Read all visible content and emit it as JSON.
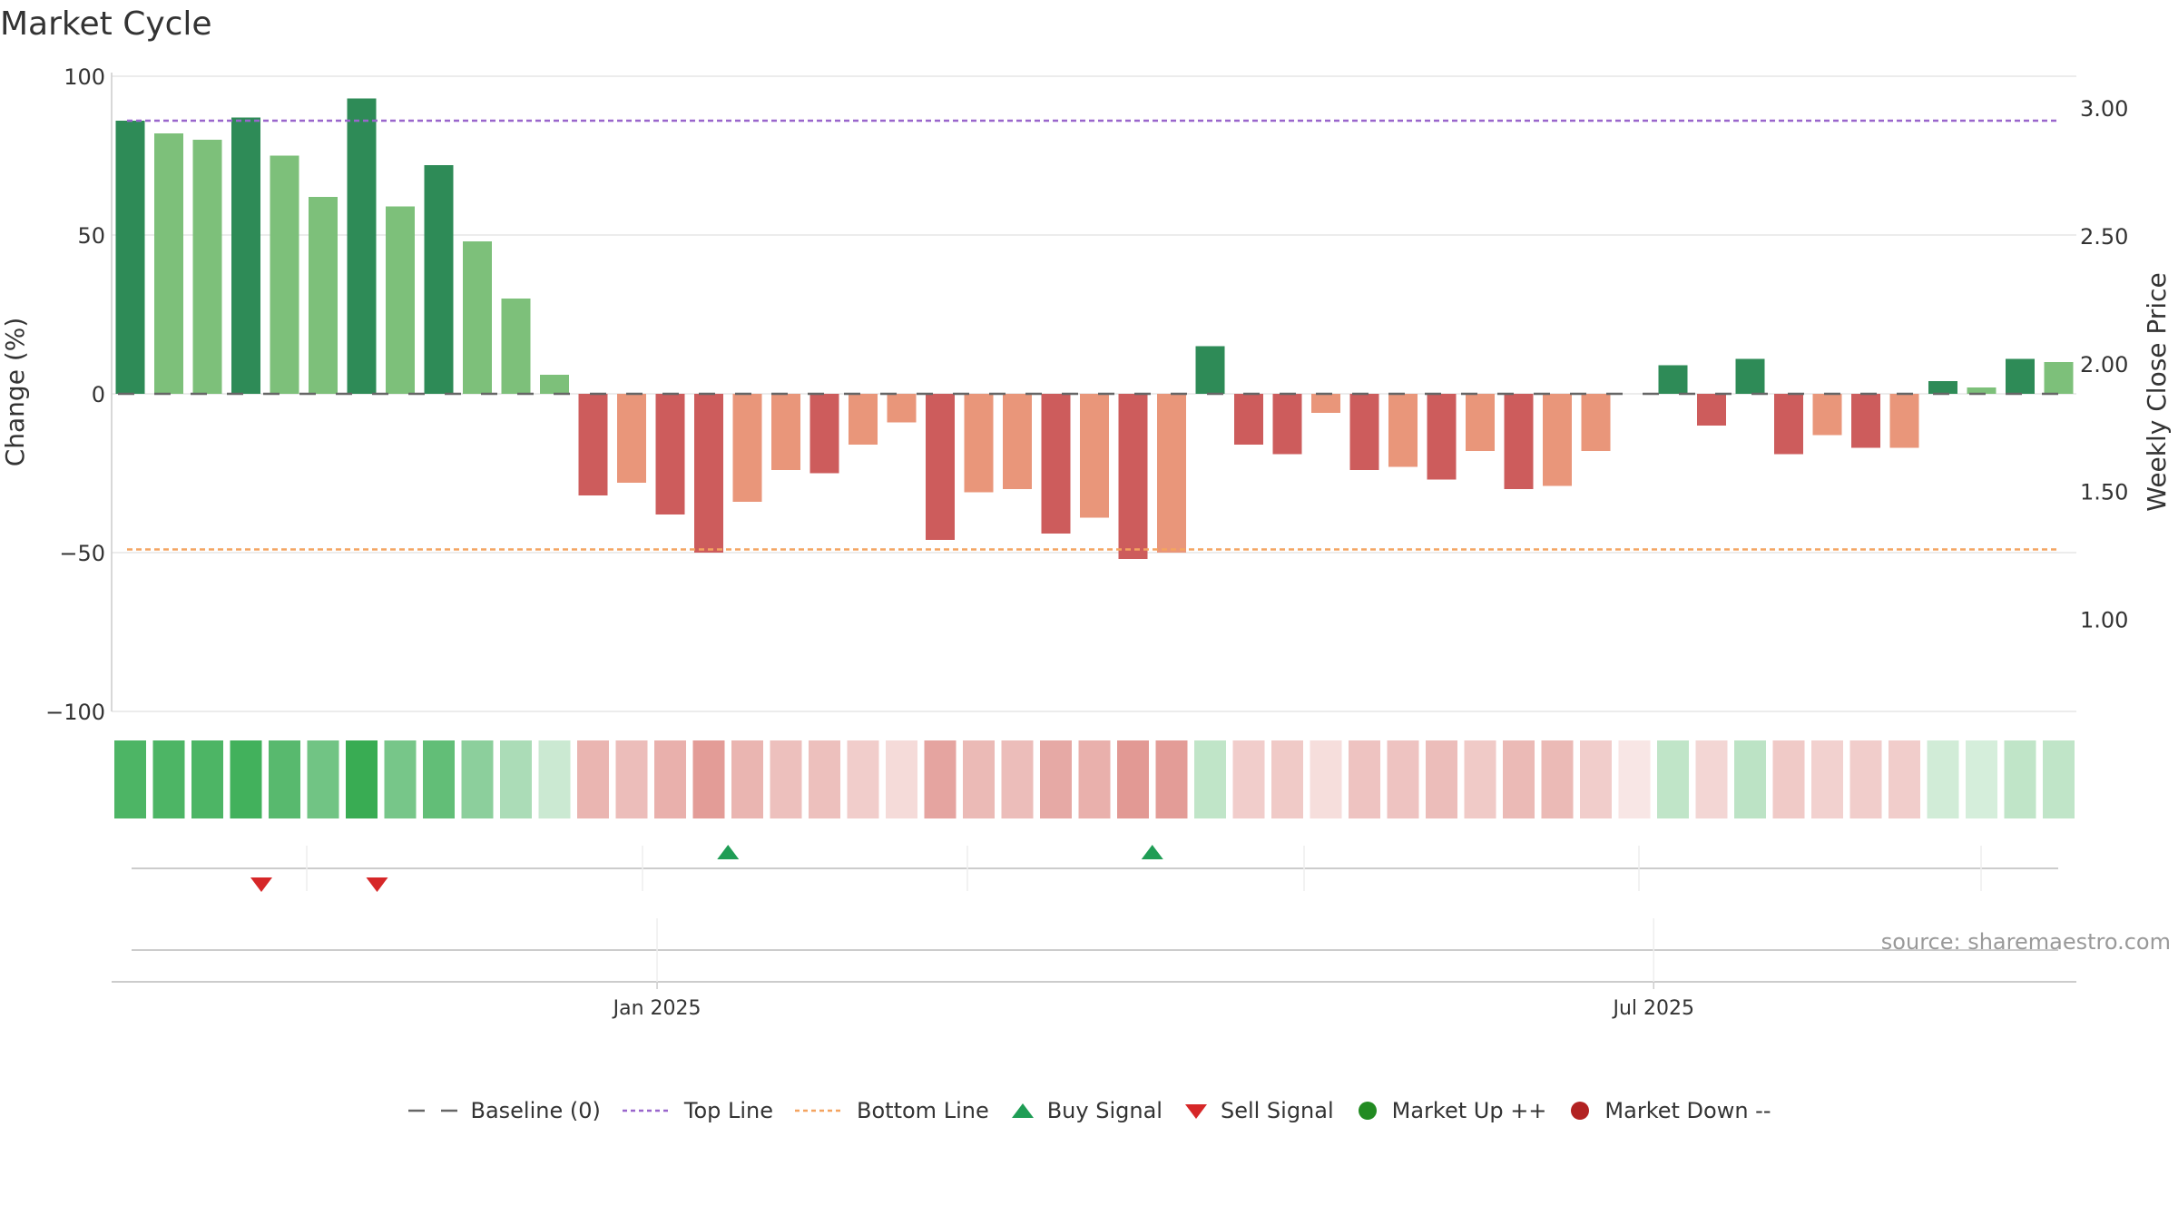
{
  "title": "Market Cycle",
  "source_note": "source: sharemaestro.com",
  "colors": {
    "up_strong": "#2e8b57",
    "up_light": "#7dc07a",
    "down_strong": "#cd5c5c",
    "down_light": "#e9967a",
    "top_line": "#9966cc",
    "bottom_line": "#f4a460",
    "baseline": "#666666",
    "buy": "#1f9d55",
    "sell": "#d62728",
    "market_up": "#228b22",
    "market_down": "#b22222"
  },
  "legend": [
    {
      "label": "Baseline (0)",
      "kind": "dash",
      "color_key": "baseline"
    },
    {
      "label": "Top Line",
      "kind": "dotted",
      "color_key": "top_line"
    },
    {
      "label": "Bottom Line",
      "kind": "dotted",
      "color_key": "bottom_line"
    },
    {
      "label": "Buy Signal",
      "kind": "tri-up",
      "color_key": "buy"
    },
    {
      "label": "Sell Signal",
      "kind": "tri-down",
      "color_key": "sell"
    },
    {
      "label": "Market Up ++",
      "kind": "circle",
      "color_key": "market_up"
    },
    {
      "label": "Market Down --",
      "kind": "circle",
      "color_key": "market_down"
    }
  ],
  "chart_data": {
    "type": "bar",
    "ylabel": "Change (%)",
    "y2label": "Weekly Close Price",
    "ylim": [
      -100,
      100
    ],
    "y_ticks": [
      100,
      50,
      0,
      -50,
      -100
    ],
    "y_tick_labels": [
      "100",
      "50",
      "0",
      "−50",
      "−100"
    ],
    "y2_ticks": [
      3.0,
      2.5,
      2.0,
      1.5,
      1.0
    ],
    "y2_tick_labels": [
      "3.00",
      "2.50",
      "2.00",
      "1.50",
      "1.00"
    ],
    "y2lim": [
      0.64,
      3.125
    ],
    "x_tick_labels": [
      {
        "label": "Jan 2025",
        "week": 13.66
      },
      {
        "label": "Jul 2025",
        "week": 39.5
      }
    ],
    "top_line": 86,
    "bottom_line": -49,
    "baseline": 0,
    "values": [
      86,
      82,
      80,
      87,
      75,
      62,
      93,
      59,
      72,
      48,
      30,
      6,
      -32,
      -28,
      -38,
      -50,
      -34,
      -24,
      -25,
      -16,
      -9,
      -46,
      -31,
      -30,
      -44,
      -39,
      -52,
      -50,
      15,
      -16,
      -19,
      -6,
      -24,
      -23,
      -27,
      -18,
      -30,
      -29,
      -18,
      0,
      9,
      -10,
      11,
      -19,
      -13,
      -17,
      -17,
      4,
      2,
      11,
      10
    ],
    "colors": [
      "up_strong",
      "up_light",
      "up_light",
      "up_strong",
      "up_light",
      "up_light",
      "up_strong",
      "up_light",
      "up_strong",
      "up_light",
      "up_light",
      "up_light",
      "down_strong",
      "down_light",
      "down_strong",
      "down_strong",
      "down_light",
      "down_light",
      "down_strong",
      "down_light",
      "down_light",
      "down_strong",
      "down_light",
      "down_light",
      "down_strong",
      "down_light",
      "down_strong",
      "down_light",
      "up_strong",
      "down_strong",
      "down_strong",
      "down_light",
      "down_strong",
      "down_light",
      "down_strong",
      "down_light",
      "down_strong",
      "down_light",
      "down_light",
      "up_strong",
      "up_strong",
      "down_strong",
      "up_strong",
      "down_strong",
      "down_light",
      "down_strong",
      "down_light",
      "up_strong",
      "up_light",
      "up_strong",
      "up_light"
    ],
    "heat_strip": [
      {
        "hue": "green",
        "alpha": 0.85
      },
      {
        "hue": "green",
        "alpha": 0.85
      },
      {
        "hue": "green",
        "alpha": 0.85
      },
      {
        "hue": "green",
        "alpha": 0.9
      },
      {
        "hue": "green",
        "alpha": 0.8
      },
      {
        "hue": "green",
        "alpha": 0.68
      },
      {
        "hue": "green",
        "alpha": 0.95
      },
      {
        "hue": "green",
        "alpha": 0.65
      },
      {
        "hue": "green",
        "alpha": 0.75
      },
      {
        "hue": "green",
        "alpha": 0.55
      },
      {
        "hue": "green",
        "alpha": 0.4
      },
      {
        "hue": "green",
        "alpha": 0.25
      },
      {
        "hue": "red",
        "alpha": 0.45
      },
      {
        "hue": "red",
        "alpha": 0.4
      },
      {
        "hue": "red",
        "alpha": 0.48
      },
      {
        "hue": "red",
        "alpha": 0.6
      },
      {
        "hue": "red",
        "alpha": 0.45
      },
      {
        "hue": "red",
        "alpha": 0.38
      },
      {
        "hue": "red",
        "alpha": 0.38
      },
      {
        "hue": "red",
        "alpha": 0.3
      },
      {
        "hue": "red",
        "alpha": 0.22
      },
      {
        "hue": "red",
        "alpha": 0.55
      },
      {
        "hue": "red",
        "alpha": 0.42
      },
      {
        "hue": "red",
        "alpha": 0.4
      },
      {
        "hue": "red",
        "alpha": 0.52
      },
      {
        "hue": "red",
        "alpha": 0.48
      },
      {
        "hue": "red",
        "alpha": 0.62
      },
      {
        "hue": "red",
        "alpha": 0.6
      },
      {
        "hue": "green",
        "alpha": 0.3
      },
      {
        "hue": "red",
        "alpha": 0.3
      },
      {
        "hue": "red",
        "alpha": 0.32
      },
      {
        "hue": "red",
        "alpha": 0.2
      },
      {
        "hue": "red",
        "alpha": 0.36
      },
      {
        "hue": "red",
        "alpha": 0.36
      },
      {
        "hue": "red",
        "alpha": 0.4
      },
      {
        "hue": "red",
        "alpha": 0.32
      },
      {
        "hue": "red",
        "alpha": 0.42
      },
      {
        "hue": "red",
        "alpha": 0.42
      },
      {
        "hue": "red",
        "alpha": 0.3
      },
      {
        "hue": "red",
        "alpha": 0.15
      },
      {
        "hue": "green",
        "alpha": 0.3
      },
      {
        "hue": "red",
        "alpha": 0.25
      },
      {
        "hue": "green",
        "alpha": 0.32
      },
      {
        "hue": "red",
        "alpha": 0.32
      },
      {
        "hue": "red",
        "alpha": 0.28
      },
      {
        "hue": "red",
        "alpha": 0.3
      },
      {
        "hue": "red",
        "alpha": 0.3
      },
      {
        "hue": "green",
        "alpha": 0.22
      },
      {
        "hue": "green",
        "alpha": 0.2
      },
      {
        "hue": "green",
        "alpha": 0.3
      },
      {
        "hue": "green",
        "alpha": 0.3
      }
    ],
    "buy_signals_week": [
      15.5,
      26.5
    ],
    "sell_signals_week": [
      3.4,
      6.4
    ]
  }
}
